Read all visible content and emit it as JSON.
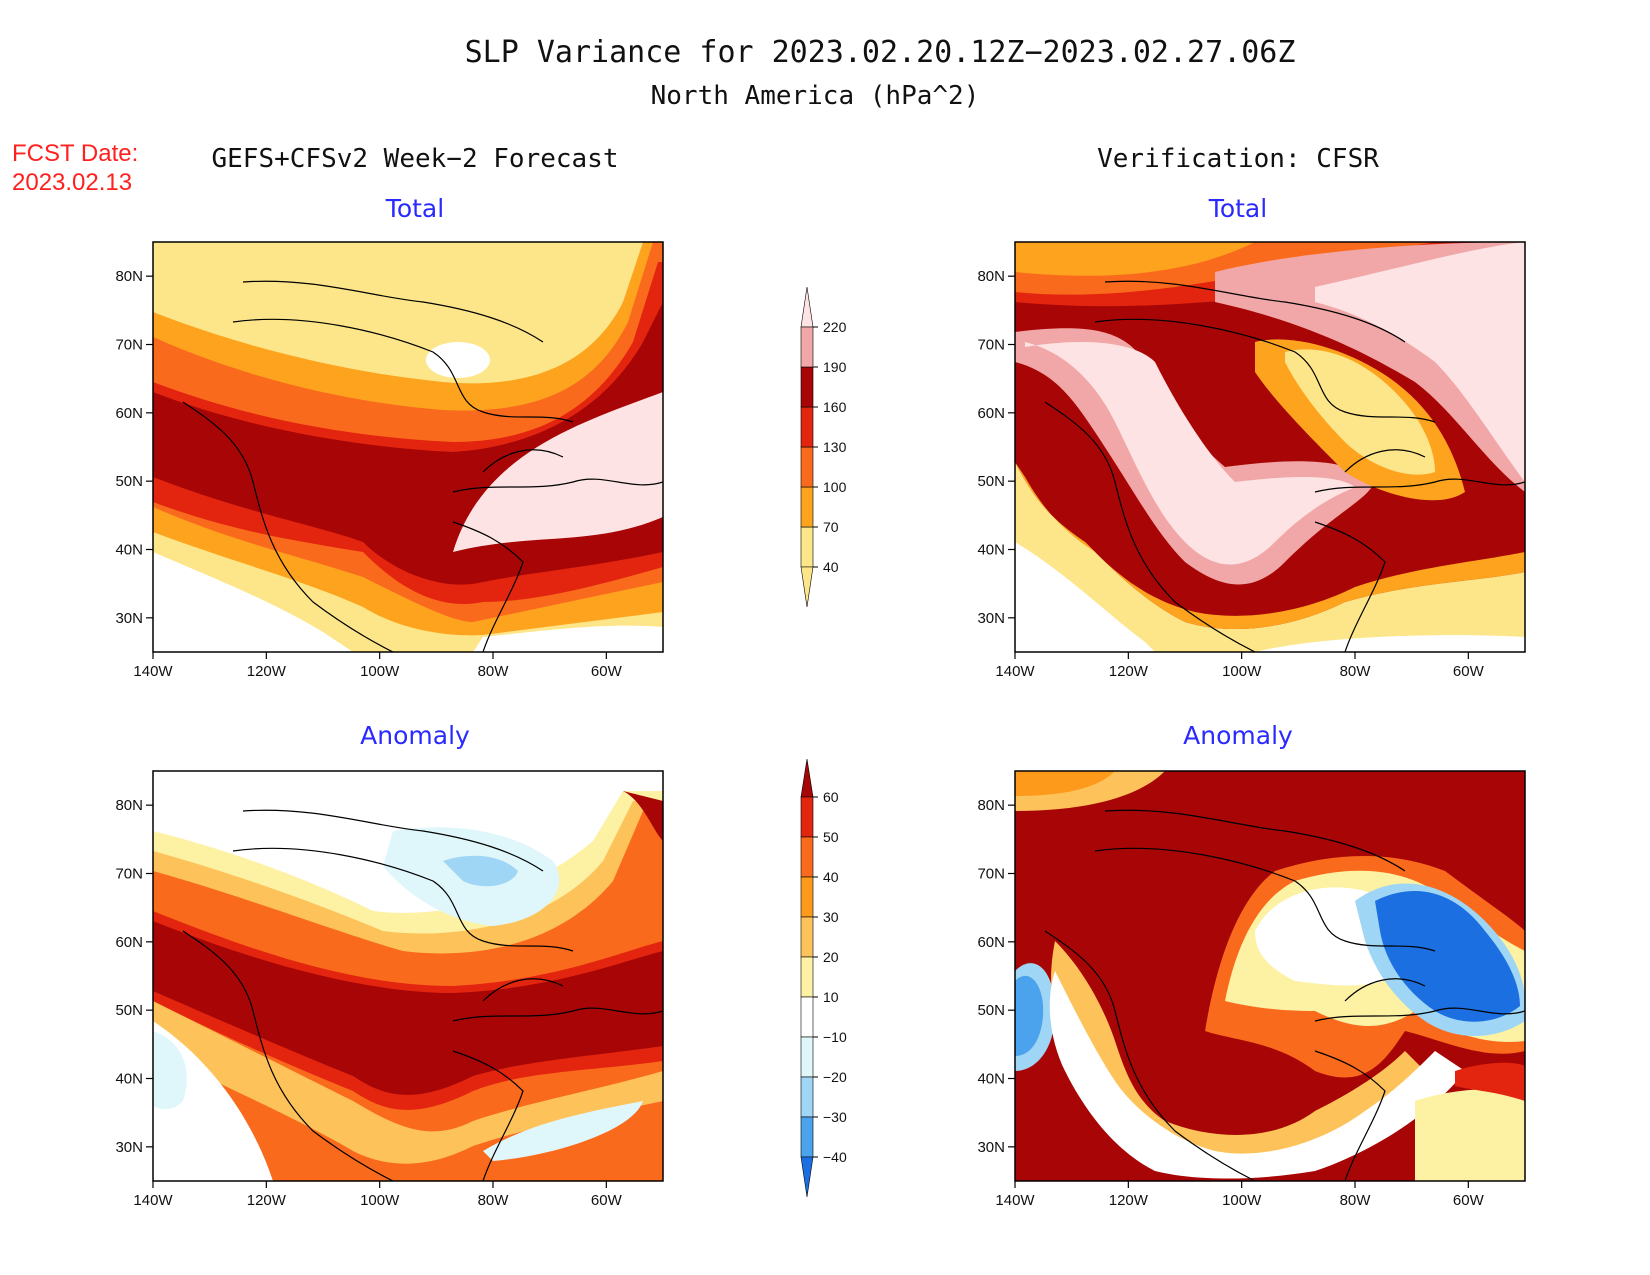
{
  "title": {
    "line1": "SLP Variance for 2023.02.20.12Z−2023.02.27.06Z",
    "line2": "North America (hPa^2)"
  },
  "fcst_date": {
    "label": "FCST Date:",
    "value": "2023.02.13"
  },
  "column_headers": {
    "left": "GEFS+CFSv2 Week−2 Forecast",
    "right": "Verification: CFSR"
  },
  "panels": [
    {
      "id": "forecast-total",
      "title": "Total"
    },
    {
      "id": "verification-total",
      "title": "Total"
    },
    {
      "id": "forecast-anomaly",
      "title": "Anomaly"
    },
    {
      "id": "verification-anomaly",
      "title": "Anomaly"
    }
  ],
  "axes": {
    "lat_ticks": [
      "80N",
      "70N",
      "60N",
      "50N",
      "40N",
      "30N"
    ],
    "lat_values": [
      80,
      70,
      60,
      50,
      40,
      30
    ],
    "lon_ticks": [
      "140W",
      "120W",
      "100W",
      "80W",
      "60W"
    ],
    "lon_values": [
      -140,
      -120,
      -100,
      -80,
      -60
    ],
    "lon_range": [
      -140,
      -50
    ],
    "lat_range": [
      25,
      85
    ]
  },
  "colorbars": {
    "total": {
      "levels": [
        "40",
        "70",
        "100",
        "130",
        "160",
        "190",
        "220"
      ],
      "colors": [
        "#fde68a",
        "#fda31e",
        "#fa6a1c",
        "#e3250f",
        "#a80606",
        "#f1a7a7",
        "#fde3e3"
      ]
    },
    "anomaly": {
      "levels": [
        "60",
        "50",
        "40",
        "30",
        "20",
        "10",
        "−10",
        "−20",
        "−30",
        "−40"
      ],
      "colors": [
        "#a80606",
        "#e3250f",
        "#fa6a1c",
        "#fd9a1b",
        "#fdc35a",
        "#fdf1a4",
        "#ffffff",
        "#dff7fb",
        "#9fd6f5",
        "#4aa3ec",
        "#1c6fe0"
      ]
    }
  },
  "chart_data": [
    {
      "type": "heatmap",
      "title": "Total",
      "subtitle": "GEFS+CFSv2 Week−2 Forecast",
      "units": "hPa^2",
      "xlim": [
        -140,
        -50
      ],
      "ylim": [
        25,
        85
      ],
      "pattern": "band of 130–190 from Pacific NW through central US to Great Lakes; >220 over Quebec/Labrador; 40–70 over central Canadian Arctic"
    },
    {
      "type": "heatmap",
      "title": "Total",
      "subtitle": "Verification: CFSR",
      "units": "hPa^2",
      "xlim": [
        -140,
        -50
      ],
      "ylim": [
        25,
        85
      ],
      "pattern": ">220 over Greenland/northern Atlantic and central US/Great Lakes; 40–70 over Hudson Bay/Quebec"
    },
    {
      "type": "heatmap",
      "title": "Anomaly",
      "subtitle": "GEFS+CFSv2 Week−2 Forecast",
      "units": "hPa^2",
      "xlim": [
        -140,
        -50
      ],
      "ylim": [
        25,
        85
      ],
      "pattern": ">60 from Pacific NW across US to Atlantic; −10 to −20 over Hudson Bay"
    },
    {
      "type": "heatmap",
      "title": "Anomaly",
      "subtitle": "Verification: CFSR",
      "units": "hPa^2",
      "xlim": [
        -140,
        -50
      ],
      "ylim": [
        25,
        85
      ],
      "pattern": ">60 over most of domain; <−40 over Quebec/Labrador; −30 off Pacific coast"
    }
  ]
}
